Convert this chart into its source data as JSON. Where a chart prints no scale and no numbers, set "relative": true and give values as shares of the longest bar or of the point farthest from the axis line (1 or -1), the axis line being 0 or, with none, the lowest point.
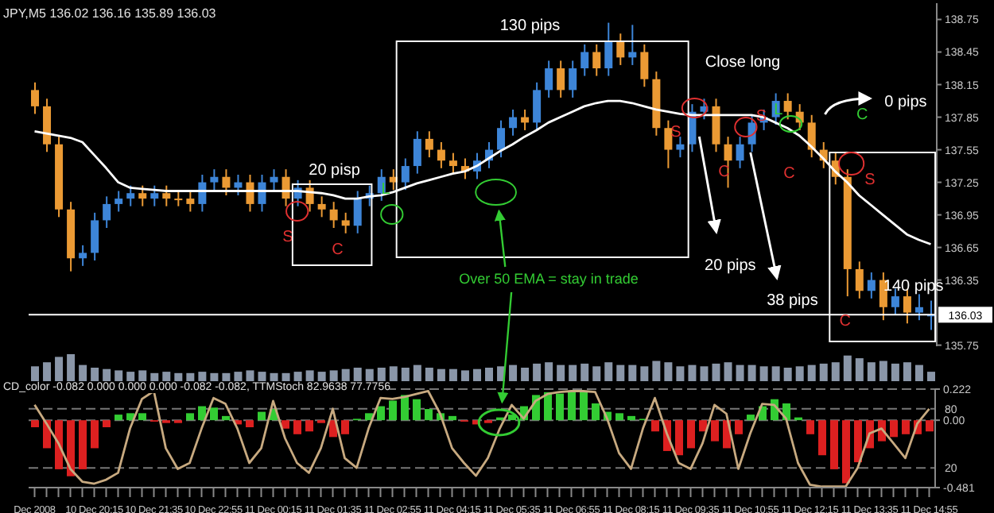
{
  "chart_data": [
    {
      "type": "candlestick",
      "categories": [
        null,
        null,
        null,
        null,
        null,
        null,
        null,
        null,
        null,
        null,
        null,
        null,
        null,
        null,
        null,
        null,
        null,
        null,
        null,
        null,
        null,
        null,
        null,
        null,
        null,
        null,
        null,
        null,
        null,
        null,
        null,
        null,
        null,
        null,
        null,
        null,
        null,
        null,
        null,
        null,
        null,
        null,
        null,
        null,
        null,
        null,
        null,
        null,
        null,
        null,
        null,
        null,
        null,
        null,
        null,
        null,
        null,
        null,
        null,
        null,
        null,
        null,
        null,
        null,
        null,
        null,
        null,
        null,
        null,
        null,
        null,
        null,
        null,
        null,
        null,
        null
      ],
      "ohlc": [
        [
          138.1,
          138.17,
          137.88,
          137.95
        ],
        [
          137.95,
          138.02,
          137.53,
          137.6
        ],
        [
          137.6,
          137.67,
          136.93,
          137.0
        ],
        [
          137.0,
          137.07,
          136.43,
          136.55
        ],
        [
          136.55,
          136.67,
          136.48,
          136.6
        ],
        [
          136.6,
          136.97,
          136.53,
          136.9
        ],
        [
          136.9,
          137.12,
          136.83,
          137.05
        ],
        [
          137.05,
          137.17,
          136.98,
          137.1
        ],
        [
          137.1,
          137.22,
          137.03,
          137.15
        ],
        [
          137.15,
          137.22,
          137.03,
          137.1
        ],
        [
          137.1,
          137.22,
          137.03,
          137.15
        ],
        [
          137.15,
          137.22,
          137.03,
          137.1
        ],
        [
          137.1,
          137.17,
          137.03,
          137.1
        ],
        [
          137.1,
          137.17,
          136.98,
          137.05
        ],
        [
          137.05,
          137.32,
          136.98,
          137.25
        ],
        [
          137.25,
          137.37,
          137.18,
          137.3
        ],
        [
          137.3,
          137.37,
          137.13,
          137.2
        ],
        [
          137.2,
          137.32,
          137.13,
          137.25
        ],
        [
          137.25,
          137.32,
          136.98,
          137.05
        ],
        [
          137.05,
          137.32,
          136.98,
          137.25
        ],
        [
          137.25,
          137.37,
          137.18,
          137.3
        ],
        [
          137.3,
          137.37,
          137.03,
          137.1
        ],
        [
          137.1,
          137.27,
          137.03,
          137.2
        ],
        [
          137.2,
          137.27,
          136.98,
          137.05
        ],
        [
          137.05,
          137.12,
          136.93,
          137.0
        ],
        [
          137.0,
          137.07,
          136.83,
          136.9
        ],
        [
          136.9,
          136.97,
          136.78,
          136.85
        ],
        [
          136.85,
          137.17,
          136.78,
          137.1
        ],
        [
          137.1,
          137.22,
          137.03,
          137.15
        ],
        [
          137.15,
          137.37,
          137.08,
          137.3
        ],
        [
          137.3,
          137.37,
          137.18,
          137.25
        ],
        [
          137.25,
          137.47,
          137.18,
          137.4
        ],
        [
          137.4,
          137.72,
          137.33,
          137.65
        ],
        [
          137.65,
          137.72,
          137.48,
          137.55
        ],
        [
          137.55,
          137.62,
          137.38,
          137.45
        ],
        [
          137.45,
          137.52,
          137.33,
          137.4
        ],
        [
          137.4,
          137.47,
          137.28,
          137.35
        ],
        [
          137.35,
          137.52,
          137.28,
          137.45
        ],
        [
          137.45,
          137.62,
          137.38,
          137.55
        ],
        [
          137.55,
          137.82,
          137.48,
          137.75
        ],
        [
          137.75,
          137.92,
          137.68,
          137.85
        ],
        [
          137.85,
          137.92,
          137.73,
          137.8
        ],
        [
          137.8,
          138.17,
          137.73,
          138.1
        ],
        [
          138.1,
          138.37,
          138.03,
          138.3
        ],
        [
          138.3,
          138.37,
          138.03,
          138.1
        ],
        [
          138.1,
          138.37,
          138.03,
          138.3
        ],
        [
          138.3,
          138.52,
          138.23,
          138.45
        ],
        [
          138.45,
          138.52,
          138.23,
          138.3
        ],
        [
          138.3,
          138.72,
          138.23,
          138.55
        ],
        [
          138.55,
          138.62,
          138.33,
          138.4
        ],
        [
          138.4,
          138.7,
          138.33,
          138.45
        ],
        [
          138.45,
          138.52,
          138.13,
          138.2
        ],
        [
          138.2,
          138.27,
          137.68,
          137.75
        ],
        [
          137.75,
          137.82,
          137.38,
          137.55
        ],
        [
          137.55,
          137.67,
          137.48,
          137.6
        ],
        [
          137.6,
          137.97,
          137.53,
          137.9
        ],
        [
          137.9,
          138.02,
          137.83,
          137.95
        ],
        [
          137.95,
          138.02,
          137.53,
          137.6
        ],
        [
          137.6,
          137.67,
          137.2,
          137.45
        ],
        [
          137.45,
          137.67,
          137.38,
          137.6
        ],
        [
          137.6,
          137.87,
          137.53,
          137.8
        ],
        [
          137.8,
          137.92,
          137.73,
          137.85
        ],
        [
          137.85,
          138.07,
          137.78,
          138.0
        ],
        [
          138.0,
          138.07,
          137.83,
          137.9
        ],
        [
          137.9,
          137.97,
          137.73,
          137.8
        ],
        [
          137.8,
          137.87,
          137.48,
          137.55
        ],
        [
          137.55,
          137.62,
          137.38,
          137.45
        ],
        [
          137.45,
          137.52,
          137.23,
          137.3
        ],
        [
          137.3,
          137.37,
          136.2,
          136.45
        ],
        [
          136.45,
          136.52,
          136.18,
          136.25
        ],
        [
          136.25,
          136.42,
          136.18,
          136.35
        ],
        [
          136.35,
          136.42,
          135.98,
          136.1
        ],
        [
          136.1,
          136.27,
          136.03,
          136.2
        ],
        [
          136.2,
          136.27,
          135.95,
          136.05
        ],
        [
          136.05,
          136.22,
          135.98,
          136.1
        ],
        [
          136.02,
          136.16,
          135.89,
          136.03
        ]
      ],
      "colors": [
        "#eb9a34",
        "#eb9a34",
        "#eb9a34",
        "#eb9a34",
        "#3d85d8",
        "#3d85d8",
        "#3d85d8",
        "#3d85d8",
        "#3d85d8",
        "#eb9a34",
        "#3d85d8",
        "#eb9a34",
        "#eb9a34",
        "#eb9a34",
        "#3d85d8",
        "#3d85d8",
        "#eb9a34",
        "#3d85d8",
        "#eb9a34",
        "#3d85d8",
        "#3d85d8",
        "#eb9a34",
        "#3d85d8",
        "#eb9a34",
        "#eb9a34",
        "#eb9a34",
        "#eb9a34",
        "#3d85d8",
        "#3d85d8",
        "#3d85d8",
        "#eb9a34",
        "#3d85d8",
        "#3d85d8",
        "#eb9a34",
        "#eb9a34",
        "#eb9a34",
        "#eb9a34",
        "#3d85d8",
        "#3d85d8",
        "#3d85d8",
        "#3d85d8",
        "#eb9a34",
        "#3d85d8",
        "#3d85d8",
        "#eb9a34",
        "#3d85d8",
        "#3d85d8",
        "#eb9a34",
        "#3d85d8",
        "#eb9a34",
        "#3d85d8",
        "#eb9a34",
        "#eb9a34",
        "#eb9a34",
        "#3d85d8",
        "#3d85d8",
        "#3d85d8",
        "#eb9a34",
        "#eb9a34",
        "#3d85d8",
        "#3d85d8",
        "#3d85d8",
        "#3d85d8",
        "#eb9a34",
        "#eb9a34",
        "#eb9a34",
        "#eb9a34",
        "#eb9a34",
        "#eb9a34",
        "#eb9a34",
        "#3d85d8",
        "#eb9a34",
        "#3d85d8",
        "#eb9a34",
        "#3d85d8",
        "#3d85d8"
      ],
      "series": [
        {
          "type": "line",
          "color": "#ffffff",
          "values": [
            137.72,
            137.7,
            137.68,
            137.66,
            137.62,
            137.5,
            137.38,
            137.25,
            137.2,
            137.19,
            137.18,
            137.17,
            137.17,
            137.17,
            137.17,
            137.17,
            137.17,
            137.17,
            137.17,
            137.17,
            137.17,
            137.17,
            137.17,
            137.16,
            137.15,
            137.13,
            137.1,
            137.1,
            137.12,
            137.13,
            137.16,
            137.2,
            137.24,
            137.27,
            137.3,
            137.33,
            137.35,
            137.4,
            137.47,
            137.54,
            137.6,
            137.67,
            137.73,
            137.8,
            137.85,
            137.9,
            137.95,
            137.98,
            138.0,
            138.0,
            137.98,
            137.95,
            137.92,
            137.9,
            137.88,
            137.87,
            137.87,
            137.87,
            137.87,
            137.87,
            137.87,
            137.85,
            137.8,
            137.75,
            137.68,
            137.58,
            137.47,
            137.35,
            137.25,
            137.13,
            137.04,
            136.95,
            136.86,
            136.77,
            136.72,
            136.68
          ]
        }
      ],
      "ylim": [
        135.74,
        138.9
      ],
      "yticks": [
        138.75,
        138.45,
        138.15,
        137.85,
        137.55,
        137.25,
        136.95,
        136.65,
        136.35,
        135.75
      ],
      "ref_lines": [
        {
          "axis": "y",
          "value": 136.03,
          "label": "136.03",
          "color": "#ffffff"
        }
      ],
      "tick_labels": "y",
      "annotations": [
        "JPY,M5 136.02 136.16 135.89 136.03",
        "130 pips",
        "Close long",
        "0 pips",
        "20 pisp",
        "20 pips",
        "38 pips",
        "140 pips",
        "Over 50 EMA = stay in trade",
        "S",
        "C",
        "L",
        "S",
        "C",
        "S",
        "L",
        "C",
        "C",
        "S",
        "C"
      ]
    },
    {
      "type": "bar",
      "relative": true,
      "color": "#8a96a8",
      "categories": [
        null,
        null,
        null,
        null,
        null,
        null,
        null,
        null,
        null,
        null,
        null,
        null,
        null,
        null,
        null,
        null,
        null,
        null,
        null,
        null,
        null,
        null,
        null,
        null,
        null,
        null,
        null,
        null,
        null,
        null,
        null,
        null,
        null,
        null,
        null,
        null,
        null,
        null,
        null,
        null,
        null,
        null,
        null,
        null,
        null,
        null,
        null,
        null,
        null,
        null,
        null,
        null,
        null,
        null,
        null,
        null,
        null,
        null,
        null,
        null,
        null,
        null,
        null,
        null,
        null,
        null,
        null,
        null,
        null,
        null,
        null,
        null,
        null,
        null,
        null,
        null
      ],
      "values": [
        0.55,
        0.7,
        0.9,
        1.0,
        0.6,
        0.5,
        0.45,
        0.4,
        0.35,
        0.4,
        0.3,
        0.35,
        0.3,
        0.3,
        0.35,
        0.3,
        0.3,
        0.35,
        0.4,
        0.35,
        0.3,
        0.3,
        0.35,
        0.4,
        0.35,
        0.4,
        0.45,
        0.5,
        0.45,
        0.5,
        0.55,
        0.5,
        0.6,
        0.5,
        0.45,
        0.45,
        0.4,
        0.45,
        0.5,
        0.55,
        0.6,
        0.5,
        0.65,
        0.7,
        0.6,
        0.6,
        0.65,
        0.55,
        0.7,
        0.6,
        0.6,
        0.55,
        0.75,
        0.7,
        0.55,
        0.6,
        0.55,
        0.65,
        0.7,
        0.6,
        0.6,
        0.55,
        0.55,
        0.5,
        0.55,
        0.6,
        0.65,
        0.7,
        0.95,
        0.85,
        0.7,
        0.75,
        0.65,
        0.7,
        0.6,
        0.35
      ],
      "tick_labels": false
    },
    {
      "type": "bar",
      "categories": [
        "Dec 2008",
        null,
        null,
        null,
        null,
        "10 Dec 20:15",
        null,
        null,
        null,
        null,
        "10 Dec 21:35",
        null,
        null,
        null,
        null,
        "10 Dec 22:55",
        null,
        null,
        null,
        null,
        "11 Dec 00:15",
        null,
        null,
        null,
        null,
        "11 Dec 01:35",
        null,
        null,
        null,
        null,
        "11 Dec 02:55",
        null,
        null,
        null,
        null,
        "11 Dec 04:15",
        null,
        null,
        null,
        null,
        "11 Dec 05:35",
        null,
        null,
        null,
        null,
        "11 Dec 06:55",
        null,
        null,
        null,
        null,
        "11 Dec 08:15",
        null,
        null,
        null,
        null,
        "11 Dec 09:35",
        null,
        null,
        null,
        null,
        "11 Dec 10:55",
        null,
        null,
        null,
        null,
        "11 Dec 12:15",
        null,
        null,
        null,
        null,
        "11 Dec 13:35",
        null,
        null,
        null,
        null,
        "11 Dec 14:55"
      ],
      "values": [
        -0.05,
        -0.2,
        -0.35,
        -0.4,
        -0.35,
        -0.2,
        -0.05,
        0.04,
        0.05,
        0.05,
        -0.01,
        -0.02,
        -0.02,
        0.05,
        0.1,
        0.09,
        0.03,
        -0.03,
        -0.05,
        0.06,
        0.08,
        -0.06,
        -0.1,
        -0.08,
        -0.02,
        -0.12,
        -0.1,
        0.01,
        0.05,
        0.1,
        0.14,
        0.18,
        0.15,
        0.08,
        0.05,
        0.03,
        -0.01,
        -0.03,
        -0.02,
        0.02,
        0.04,
        0.1,
        0.18,
        0.2,
        0.19,
        0.21,
        0.2,
        0.12,
        0.06,
        0.05,
        0.03,
        0.01,
        -0.08,
        -0.22,
        -0.25,
        -0.2,
        -0.08,
        -0.15,
        -0.2,
        -0.1,
        0.04,
        0.1,
        0.15,
        0.12,
        0.02,
        -0.1,
        -0.25,
        -0.35,
        -0.45,
        -0.3,
        -0.2,
        -0.15,
        -0.12,
        -0.1,
        -0.1,
        -0.08
      ],
      "colors": [
        "#dd2020",
        "#dd2020",
        "#dd2020",
        "#dd2020",
        "#dd2020",
        "#dd2020",
        "#dd2020",
        "#33cc33",
        "#33cc33",
        "#33cc33",
        "#dd2020",
        "#dd2020",
        "#dd2020",
        "#33cc33",
        "#33cc33",
        "#33cc33",
        "#33cc33",
        "#dd2020",
        "#dd2020",
        "#33cc33",
        "#33cc33",
        "#dd2020",
        "#dd2020",
        "#dd2020",
        "#dd2020",
        "#dd2020",
        "#dd2020",
        "#33cc33",
        "#33cc33",
        "#33cc33",
        "#33cc33",
        "#33cc33",
        "#33cc33",
        "#33cc33",
        "#33cc33",
        "#33cc33",
        "#dd2020",
        "#dd2020",
        "#dd2020",
        "#33cc33",
        "#33cc33",
        "#33cc33",
        "#33cc33",
        "#33cc33",
        "#33cc33",
        "#33cc33",
        "#33cc33",
        "#33cc33",
        "#33cc33",
        "#33cc33",
        "#33cc33",
        "#33cc33",
        "#dd2020",
        "#dd2020",
        "#dd2020",
        "#dd2020",
        "#dd2020",
        "#dd2020",
        "#dd2020",
        "#dd2020",
        "#33cc33",
        "#33cc33",
        "#33cc33",
        "#33cc33",
        "#33cc33",
        "#dd2020",
        "#dd2020",
        "#dd2020",
        "#dd2020",
        "#dd2020",
        "#dd2020",
        "#dd2020",
        "#dd2020",
        "#dd2020",
        "#dd2020",
        "#dd2020"
      ],
      "series": [
        {
          "type": "line",
          "axis": "y2",
          "color": "#c8aa80",
          "values": [
            84,
            65,
            45,
            19,
            6,
            4,
            8,
            15,
            60,
            90,
            98,
            40,
            19,
            25,
            60,
            91,
            85,
            60,
            25,
            40,
            88,
            50,
            25,
            15,
            40,
            80,
            30,
            20,
            60,
            91,
            90,
            92,
            95,
            98,
            75,
            40,
            25,
            12,
            30,
            60,
            84,
            70,
            88,
            95,
            97,
            98,
            98,
            97,
            70,
            35,
            19,
            60,
            91,
            55,
            25,
            19,
            45,
            84,
            75,
            19,
            55,
            85,
            84,
            70,
            25,
            3,
            1,
            1,
            1,
            20,
            55,
            60,
            45,
            30,
            65,
            80
          ]
        }
      ],
      "ylim": [
        -0.481,
        0.222
      ],
      "yticks": [
        0.222,
        {
          "value": 0,
          "label": "0.00"
        },
        -0.481
      ],
      "y2lim": [
        0,
        100
      ],
      "y2ticks": [
        80,
        20
      ],
      "grid": "y",
      "annotations": [
        "CD_color -0.082 0.000 0.000 0.000 -0.082 -0.082, TTMStoch 82.9638 77.7756"
      ]
    }
  ]
}
